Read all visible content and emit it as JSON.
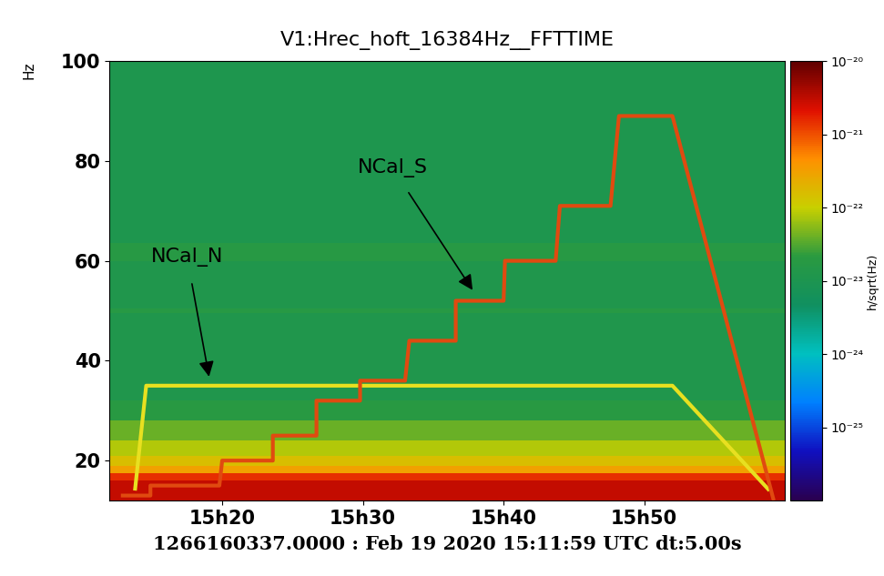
{
  "chart_data": {
    "type": "spectrogram",
    "title": "V1:Hrec_hoft_16384Hz__FFTTIME",
    "x_label": "1266160337.0000 : Feb 19 2020 15:11:59 UTC dt:5.00s",
    "y_label": "Hz",
    "xlim": [
      12,
      60
    ],
    "xticks": [
      {
        "value": 20,
        "label": "15h20"
      },
      {
        "value": 30,
        "label": "15h30"
      },
      {
        "value": 40,
        "label": "15h40"
      },
      {
        "value": 50,
        "label": "15h50"
      }
    ],
    "ylim": [
      12,
      100
    ],
    "yticks": [
      20,
      40,
      60,
      80,
      100
    ],
    "background": {
      "frequencies": [
        12,
        14,
        16,
        17.5,
        19,
        21,
        24,
        28,
        32,
        49.5,
        50.5,
        60,
        63.5,
        100
      ],
      "values": [
        3e-21,
        3e-21,
        1.5e-21,
        3e-22,
        1.5e-22,
        8e-23,
        4e-23,
        2e-23,
        1.2e-23,
        1.8e-23,
        1.2e-23,
        1.8e-23,
        1.1e-23
      ]
    },
    "colorbar": {
      "label": "h/sqrt(Hz)",
      "log": true,
      "lim": [
        1e-26,
        1e-20
      ],
      "ticks": [
        {
          "value": 1e-25,
          "label": "10⁻²⁵"
        },
        {
          "value": 1e-24,
          "label": "10⁻²⁴"
        },
        {
          "value": 1e-23,
          "label": "10⁻²³"
        },
        {
          "value": 1e-22,
          "label": "10⁻²²"
        },
        {
          "value": 1e-21,
          "label": "10⁻²¹"
        },
        {
          "value": 1e-20,
          "label": "10⁻²⁰"
        }
      ]
    },
    "series": [
      {
        "name": "NCal_N",
        "color": "#e8e020",
        "x": [
          13.8,
          14.6,
          52.0,
          58.9
        ],
        "values": [
          14,
          35,
          35,
          14
        ]
      },
      {
        "name": "NCal_S",
        "color": "#e04a10",
        "x": [
          12.8,
          14.9,
          14.9,
          19.8,
          20.0,
          23.6,
          23.6,
          26.7,
          26.7,
          29.8,
          29.8,
          33.0,
          33.3,
          36.6,
          36.6,
          40.0,
          40.1,
          43.7,
          44.0,
          47.6,
          48.2,
          52.0,
          59.2
        ],
        "values": [
          13,
          13,
          15,
          15,
          20,
          20,
          25,
          25,
          32,
          32,
          36,
          36,
          44,
          44,
          52,
          52,
          60,
          60,
          71,
          71,
          89,
          89,
          12
        ]
      }
    ],
    "annotations": [
      {
        "text": "NCal_N",
        "x": 19.1,
        "y": 36.3,
        "text_x": 17.5,
        "text_y": 60.8
      },
      {
        "text": "NCal_S",
        "x": 37.9,
        "y": 53.7,
        "text_x": 32.1,
        "text_y": 78.6
      }
    ]
  }
}
